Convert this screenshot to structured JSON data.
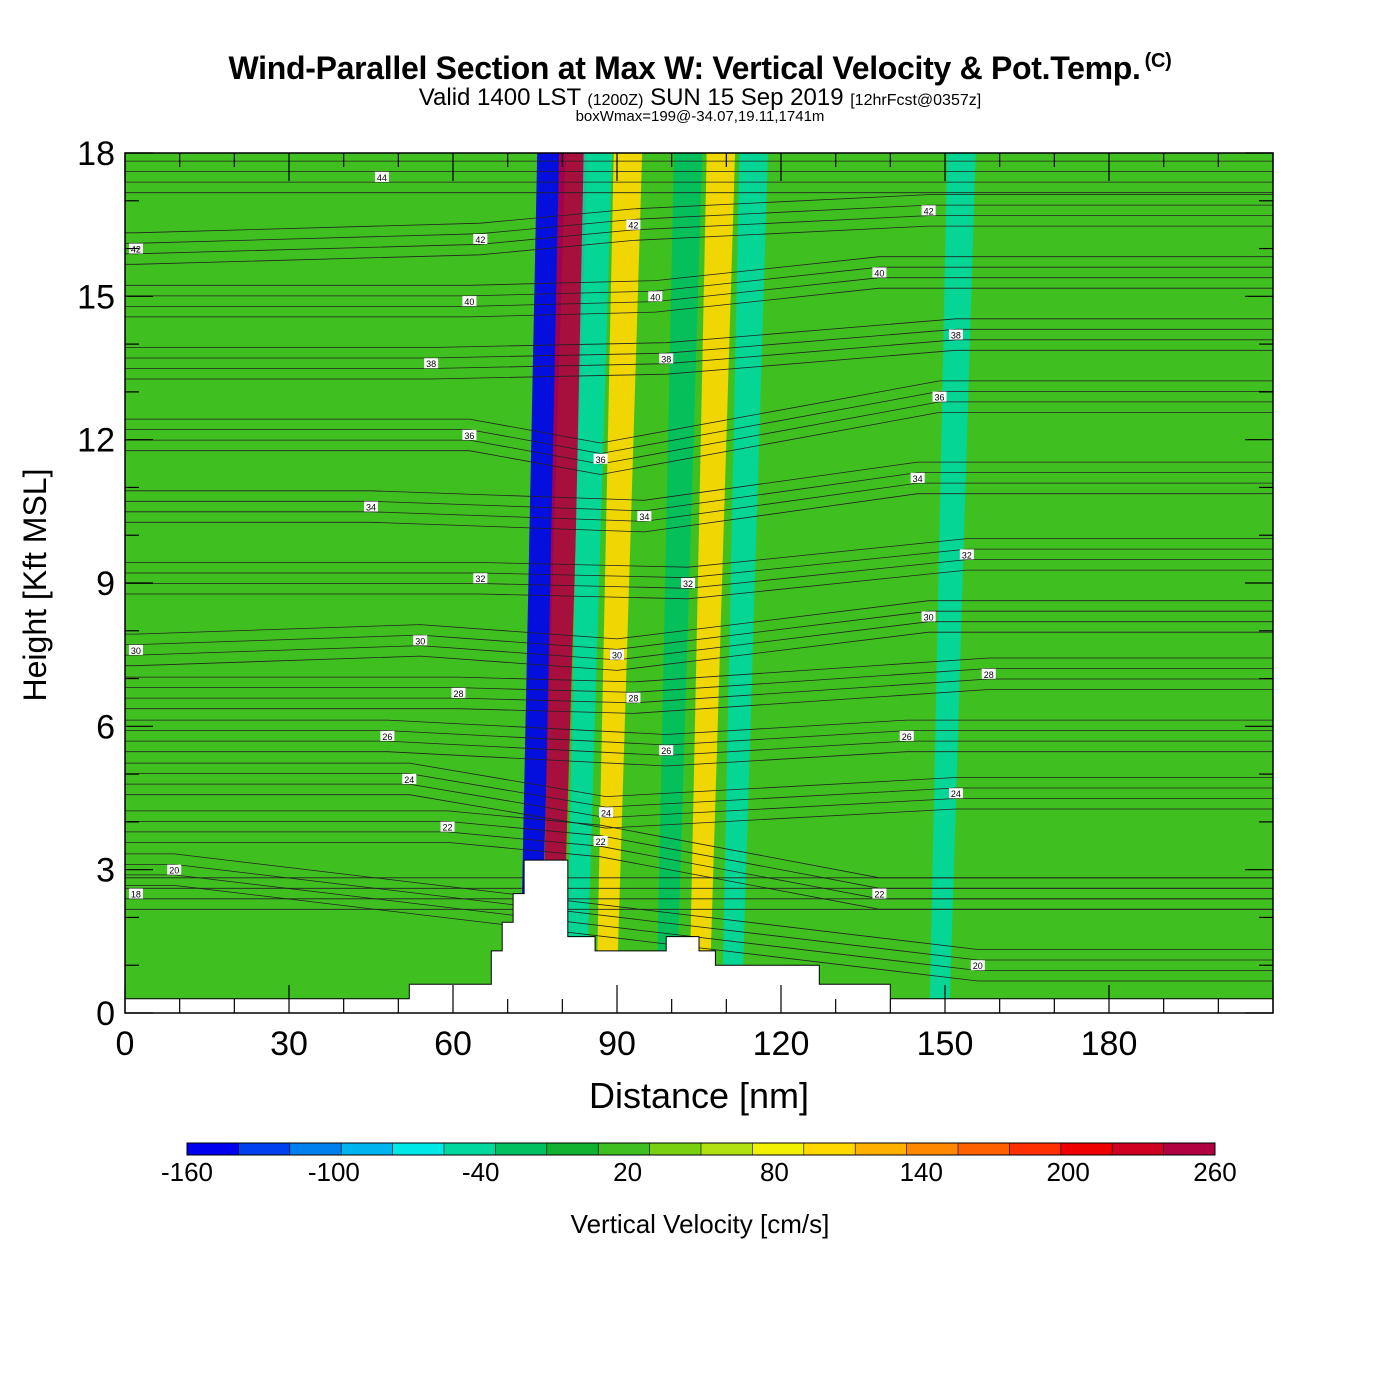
{
  "title": {
    "main": "Wind-Parallel Section at Max W: Vertical Velocity & Pot.Temp.",
    "copyright": "(C)",
    "valid_prefix": "Valid 1400 LST",
    "valid_utc": "(1200Z)",
    "valid_date": "SUN 15 Sep 2019",
    "forecast": "[12hrFcst@0357z]",
    "boxwmax": "boxWmax=199@-34.07,19.11,1741m"
  },
  "chart_data": {
    "type": "heatmap",
    "xlabel": "Distance [nm]",
    "ylabel": "Height [Kft MSL]",
    "xlim": [
      0,
      210
    ],
    "ylim": [
      0,
      18
    ],
    "x_ticks": [
      "0",
      "30",
      "60",
      "90",
      "120",
      "150",
      "180"
    ],
    "y_ticks": [
      "0",
      "3",
      "6",
      "9",
      "12",
      "15",
      "18"
    ],
    "colorbar": {
      "label": "Vertical Velocity [cm/s]",
      "tick_labels": [
        "-160",
        "-100",
        "-40",
        "20",
        "80",
        "140",
        "200",
        "260"
      ],
      "levels": [
        -160,
        -140,
        -120,
        -100,
        -80,
        -60,
        -40,
        -20,
        0,
        20,
        40,
        60,
        80,
        100,
        120,
        140,
        160,
        180,
        200,
        220,
        240,
        260
      ],
      "colors": [
        "#0000ee",
        "#0040ee",
        "#0080ee",
        "#00b4f0",
        "#00e8e8",
        "#00d8a0",
        "#00c060",
        "#10b030",
        "#40c020",
        "#78d010",
        "#b0e010",
        "#f0f000",
        "#ffd800",
        "#ffb000",
        "#ff8800",
        "#ff6000",
        "#ff3000",
        "#ee0000",
        "#d00020",
        "#b00040"
      ]
    },
    "updraft_bands": [
      {
        "x_center": 78.0,
        "w_max": -160
      },
      {
        "x_center": 82.0,
        "w_max": 240
      },
      {
        "x_center": 86.5,
        "w_max": -60
      },
      {
        "x_center": 92.0,
        "w_max": 90
      },
      {
        "x_center": 99.0,
        "w_max": 10
      },
      {
        "x_center": 103.0,
        "w_max": -40
      },
      {
        "x_center": 109.0,
        "w_max": 80
      },
      {
        "x_center": 115.0,
        "w_max": -60
      },
      {
        "x_center": 153.0,
        "w_max": -50
      }
    ],
    "terrain_kft": {
      "x": [
        0,
        52,
        52,
        67,
        67,
        69,
        69,
        71,
        71,
        73,
        73,
        75,
        75,
        81,
        81,
        83,
        83,
        86,
        86,
        99,
        99,
        105,
        105,
        108,
        108,
        127,
        127,
        140,
        140,
        210
      ],
      "y": [
        0.3,
        0.3,
        0.6,
        0.6,
        1.3,
        1.3,
        1.9,
        1.9,
        2.5,
        2.5,
        3.2,
        3.2,
        3.2,
        3.2,
        1.6,
        1.6,
        1.6,
        1.6,
        1.3,
        1.3,
        1.6,
        1.6,
        1.3,
        1.3,
        1.0,
        1.0,
        0.6,
        0.6,
        0.3,
        0.3
      ]
    },
    "theta_contour_labels": [
      {
        "value": "44",
        "x": 47,
        "y": 17.5
      },
      {
        "value": "42",
        "x": 2,
        "y": 16.0
      },
      {
        "value": "42",
        "x": 65,
        "y": 16.2
      },
      {
        "value": "42",
        "x": 93,
        "y": 16.5
      },
      {
        "value": "42",
        "x": 147,
        "y": 16.8
      },
      {
        "value": "40",
        "x": 63,
        "y": 14.9
      },
      {
        "value": "40",
        "x": 97,
        "y": 15.0
      },
      {
        "value": "40",
        "x": 138,
        "y": 15.5
      },
      {
        "value": "38",
        "x": 56,
        "y": 13.6
      },
      {
        "value": "38",
        "x": 99,
        "y": 13.7
      },
      {
        "value": "38",
        "x": 152,
        "y": 14.2
      },
      {
        "value": "36",
        "x": 63,
        "y": 12.1
      },
      {
        "value": "36",
        "x": 87,
        "y": 11.6
      },
      {
        "value": "36",
        "x": 149,
        "y": 12.9
      },
      {
        "value": "34",
        "x": 45,
        "y": 10.6
      },
      {
        "value": "34",
        "x": 95,
        "y": 10.4
      },
      {
        "value": "34",
        "x": 145,
        "y": 11.2
      },
      {
        "value": "32",
        "x": 65,
        "y": 9.1
      },
      {
        "value": "32",
        "x": 103,
        "y": 9.0
      },
      {
        "value": "32",
        "x": 154,
        "y": 9.6
      },
      {
        "value": "30",
        "x": 2,
        "y": 7.6
      },
      {
        "value": "30",
        "x": 54,
        "y": 7.8
      },
      {
        "value": "30",
        "x": 90,
        "y": 7.5
      },
      {
        "value": "30",
        "x": 147,
        "y": 8.3
      },
      {
        "value": "28",
        "x": 61,
        "y": 6.7
      },
      {
        "value": "28",
        "x": 93,
        "y": 6.6
      },
      {
        "value": "28",
        "x": 158,
        "y": 7.1
      },
      {
        "value": "26",
        "x": 48,
        "y": 5.8
      },
      {
        "value": "26",
        "x": 99,
        "y": 5.5
      },
      {
        "value": "26",
        "x": 143,
        "y": 5.8
      },
      {
        "value": "24",
        "x": 52,
        "y": 4.9
      },
      {
        "value": "24",
        "x": 88,
        "y": 4.2
      },
      {
        "value": "24",
        "x": 152,
        "y": 4.6
      },
      {
        "value": "22",
        "x": 59,
        "y": 3.9
      },
      {
        "value": "22",
        "x": 87,
        "y": 3.6
      },
      {
        "value": "22",
        "x": 138,
        "y": 2.5
      },
      {
        "value": "20",
        "x": 9,
        "y": 3.0
      },
      {
        "value": "20",
        "x": 156,
        "y": 1.0
      },
      {
        "value": "18",
        "x": 2,
        "y": 2.5
      }
    ]
  }
}
